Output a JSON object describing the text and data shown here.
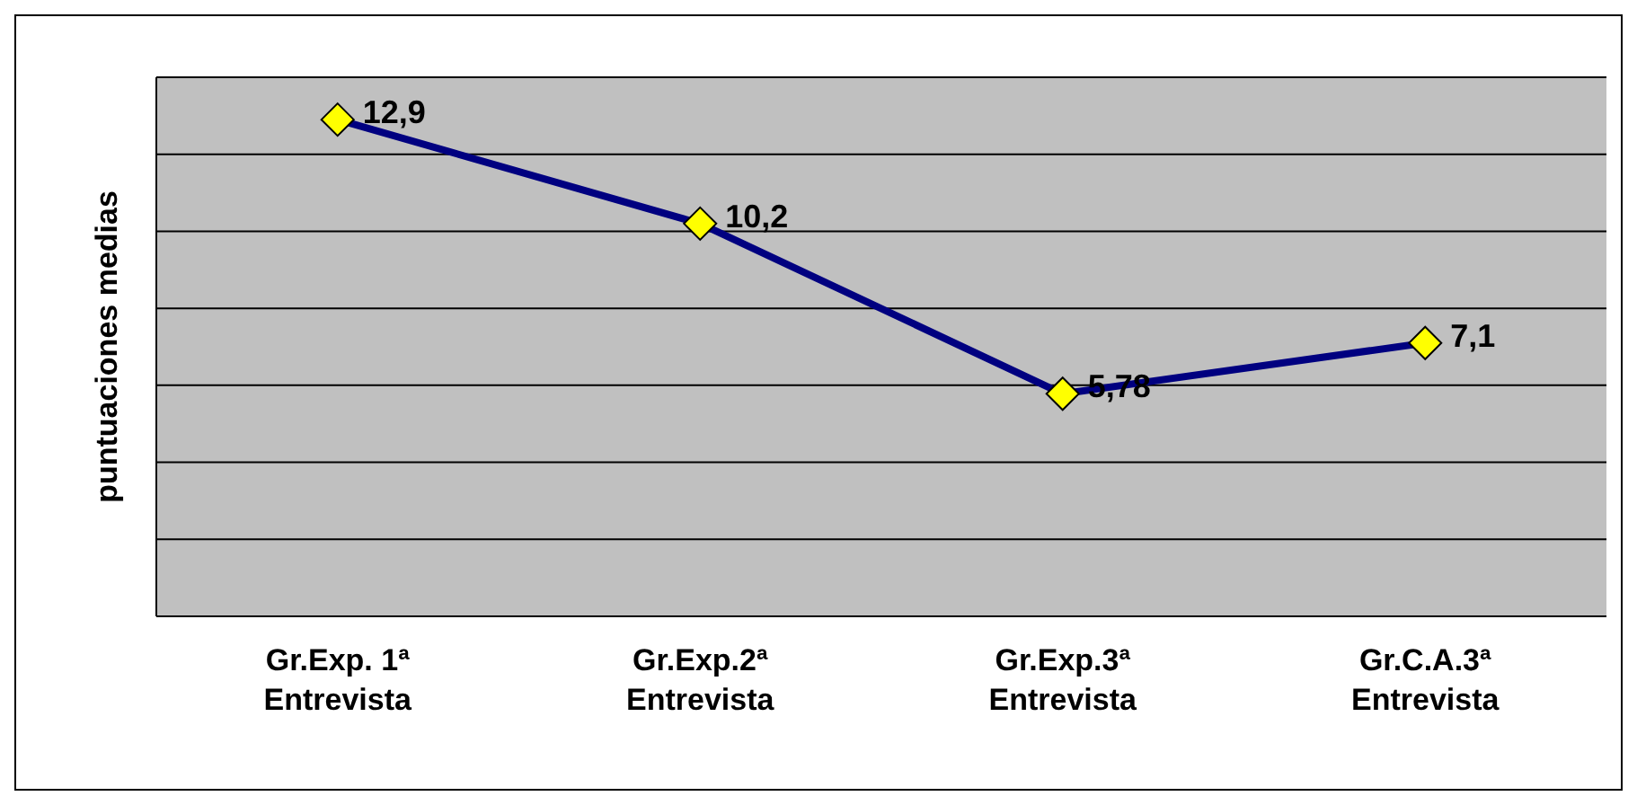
{
  "chart_data": {
    "type": "line",
    "ylabel": "puntuaciones medias",
    "categories": [
      "Gr.Exp. 1ª\nEntrevista",
      "Gr.Exp.2ª\nEntrevista",
      "Gr.Exp.3ª\nEntrevista",
      "Gr.C.A.3ª\nEntrevista"
    ],
    "series": [
      {
        "color": "#000080",
        "values": [
          12.9,
          10.2,
          5.78,
          7.1
        ],
        "value_labels": [
          "12,9",
          "10,2",
          "5,78",
          "7,1"
        ]
      }
    ],
    "ylim": [
      0,
      14
    ],
    "yticks": [
      {
        "value": 0,
        "label": null
      },
      {
        "value": 2,
        "label": null
      },
      {
        "value": 4,
        "label": null
      },
      {
        "value": 6,
        "label": null
      },
      {
        "value": 8,
        "label": null
      },
      {
        "value": 10,
        "label": null
      },
      {
        "value": 12,
        "label": null
      },
      {
        "value": 14,
        "label": null
      }
    ],
    "tick_labels": "x",
    "grid": "y",
    "marker": "diamond",
    "line_style": "solid",
    "legend": false
  }
}
